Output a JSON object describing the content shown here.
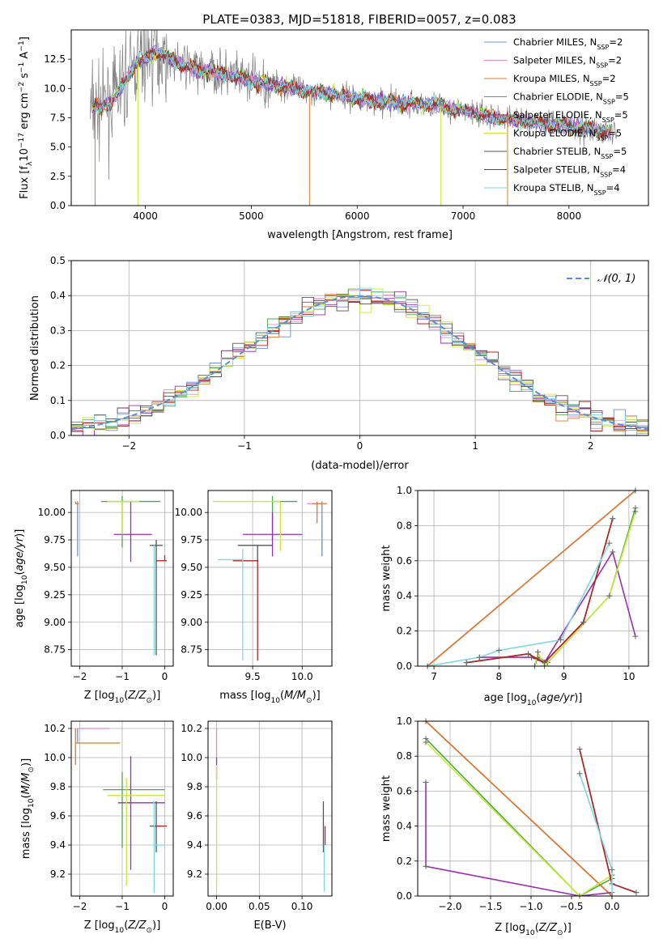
{
  "figure_title": "PLATE=0383, MJD=51818, FIBERID=0057, z=0.083",
  "series_colors": {
    "chabrier_miles": "#6a8ed6",
    "salpeter_miles": "#e08cc8",
    "kroupa_miles": "#e07a2a",
    "chabrier_elodie": "#4aaa4a",
    "salpeter_elodie": "#9b2fb0",
    "kroupa_elodie": "#c8e838",
    "chabrier_stelib": "#555555",
    "salpeter_stelib": "#b22222",
    "kroupa_stelib": "#7dd8e0"
  },
  "chart_data": [
    {
      "id": "spectrum",
      "type": "line",
      "title": "PLATE=0383, MJD=51818, FIBERID=0057, z=0.083",
      "xlabel": "wavelength [Angstrom, rest frame]",
      "ylabel": "Flux [f",
      "xlim": [
        3300,
        8750
      ],
      "ylim": [
        0,
        15
      ],
      "xticks": [
        "4000",
        "5000",
        "6000",
        "7000",
        "8000"
      ],
      "yticks": [
        "0.0",
        "2.5",
        "5.0",
        "7.5",
        "10.0",
        "12.5"
      ],
      "grid": false,
      "legend_position": "top-right",
      "legend": [
        {
          "key": "chabrier_miles",
          "label": "Chabrier MILES, N",
          "sub": "SSP",
          "suffix": "=2"
        },
        {
          "key": "salpeter_miles",
          "label": "Salpeter MILES, N",
          "sub": "SSP",
          "suffix": "=2"
        },
        {
          "key": "kroupa_miles",
          "label": "Kroupa MILES, N",
          "sub": "SSP",
          "suffix": "=2"
        },
        {
          "key": "chabrier_elodie",
          "label": "Chabrier ELODIE, N",
          "sub": "SSP",
          "suffix": "=5"
        },
        {
          "key": "salpeter_elodie",
          "label": "Salpeter ELODIE, N",
          "sub": "SSP",
          "suffix": "=5"
        },
        {
          "key": "kroupa_elodie",
          "label": "Kroupa ELODIE, N",
          "sub": "SSP",
          "suffix": "=5"
        },
        {
          "key": "chabrier_stelib",
          "label": "Chabrier STELIB, N",
          "sub": "SSP",
          "suffix": "=5"
        },
        {
          "key": "salpeter_stelib",
          "label": "Salpeter STELIB, N",
          "sub": "SSP",
          "suffix": "=4"
        },
        {
          "key": "kroupa_stelib",
          "label": "Kroupa STELIB, N",
          "sub": "SSP",
          "suffix": "=4"
        }
      ],
      "continuum": {
        "wavelength": [
          3500,
          3700,
          3900,
          4100,
          4300,
          4500,
          4700,
          4900,
          5100,
          5300,
          5500,
          5700,
          5900,
          6100,
          6300,
          6500,
          6700,
          6900,
          7100,
          7300,
          7500,
          7700,
          7900,
          8100,
          8300,
          8450
        ],
        "flux": [
          8.2,
          9.0,
          12.0,
          13.2,
          12.2,
          11.6,
          11.3,
          10.9,
          10.5,
          10.2,
          9.8,
          9.6,
          9.3,
          9.0,
          8.8,
          8.7,
          8.6,
          8.3,
          7.9,
          7.5,
          7.3,
          7.1,
          6.9,
          6.7,
          6.4,
          6.1
        ]
      }
    },
    {
      "id": "residuals",
      "type": "line",
      "xlabel": "(data-model)/error",
      "ylabel": "Normed distribution",
      "xlim": [
        -2.5,
        2.5
      ],
      "ylim": [
        0,
        0.5
      ],
      "xticks": [
        "−2",
        "−1",
        "0",
        "1",
        "2"
      ],
      "yticks": [
        "0.0",
        "0.1",
        "0.2",
        "0.3",
        "0.4",
        "0.5"
      ],
      "grid": true,
      "legend_position": "top-right",
      "legend": [
        {
          "label": "𝒩(0, 1)"
        }
      ],
      "gaussian": {
        "mean": 0,
        "sigma": 1,
        "color": "#5b8ed8"
      }
    },
    {
      "id": "age_vs_Z",
      "type": "scatter",
      "xlabel": "Z [log",
      "ylabel": "age  [log",
      "xlim": [
        -2.2,
        0.2
      ],
      "ylim": [
        8.6,
        10.2
      ],
      "xticks": [
        "−2",
        "−1",
        "0"
      ],
      "yticks": [
        "8.75",
        "9.00",
        "9.25",
        "9.50",
        "9.75",
        "10.00"
      ],
      "grid": true,
      "points": [
        {
          "key": "chabrier_miles",
          "x": -2.05,
          "y": 9.75,
          "xerr": [
            0,
            0
          ],
          "yerr": [
            0.15,
            0.35
          ]
        },
        {
          "key": "salpeter_miles",
          "x": -2.05,
          "y": 10.08,
          "xerr": [
            0,
            0
          ],
          "yerr": [
            0,
            0
          ]
        },
        {
          "key": "kroupa_miles",
          "x": -2.1,
          "y": 10.08,
          "xerr": [
            0,
            0.08
          ],
          "yerr": [
            0,
            0.02
          ]
        },
        {
          "key": "chabrier_elodie",
          "x": -1.0,
          "y": 10.1,
          "xerr": [
            0.5,
            0.9
          ],
          "yerr": [
            0.42,
            0.05
          ]
        },
        {
          "key": "salpeter_elodie",
          "x": -0.8,
          "y": 9.8,
          "xerr": [
            0.4,
            0.5
          ],
          "yerr": [
            0.25,
            0.3
          ]
        },
        {
          "key": "kroupa_elodie",
          "x": -1.0,
          "y": 10.1,
          "xerr": [
            0.35,
            0.4
          ],
          "yerr": [
            0.3,
            0.0
          ]
        },
        {
          "key": "chabrier_stelib",
          "x": -0.2,
          "y": 9.7,
          "xerr": [
            0.15,
            0.15
          ],
          "yerr": [
            1.0,
            0.05
          ]
        },
        {
          "key": "salpeter_stelib",
          "x": 0.0,
          "y": 9.56,
          "xerr": [
            0.2,
            0.05
          ],
          "yerr": [
            0,
            0.05
          ]
        },
        {
          "key": "kroupa_stelib",
          "x": -0.25,
          "y": 9.6,
          "xerr": [
            0,
            0
          ],
          "yerr": [
            0.9,
            0.1
          ]
        }
      ]
    },
    {
      "id": "age_vs_mass",
      "type": "scatter",
      "xlabel": "mass [log",
      "ylabel": "",
      "xlim": [
        9.05,
        10.3
      ],
      "ylim": [
        8.6,
        10.2
      ],
      "xticks": [
        "9.5",
        "10.0"
      ],
      "yticks": [
        "8.75",
        "9.00",
        "9.25",
        "9.50",
        "9.75",
        "10.00"
      ],
      "grid": true,
      "points": [
        {
          "key": "chabrier_miles",
          "x": 10.2,
          "y": 9.75,
          "xerr": [
            0,
            0
          ],
          "yerr": [
            0.15,
            0.35
          ]
        },
        {
          "key": "salpeter_miles",
          "x": 10.15,
          "y": 10.08,
          "xerr": [
            0.1,
            0.05
          ],
          "yerr": [
            0,
            0
          ]
        },
        {
          "key": "kroupa_miles",
          "x": 10.15,
          "y": 10.08,
          "xerr": [
            0.05,
            0.1
          ],
          "yerr": [
            0.18,
            0.02
          ]
        },
        {
          "key": "chabrier_elodie",
          "x": 9.7,
          "y": 10.1,
          "xerr": [
            0.0,
            0.25
          ],
          "yerr": [
            0.35,
            0.05
          ]
        },
        {
          "key": "salpeter_elodie",
          "x": 9.7,
          "y": 9.8,
          "xerr": [
            0.3,
            0.3
          ],
          "yerr": [
            0.2,
            0.2
          ]
        },
        {
          "key": "kroupa_elodie",
          "x": 9.78,
          "y": 10.1,
          "xerr": [
            0.68,
            0.0
          ],
          "yerr": [
            0.45,
            0.0
          ]
        },
        {
          "key": "chabrier_stelib",
          "x": 9.55,
          "y": 9.7,
          "xerr": [
            0.2,
            0.15
          ],
          "yerr": [
            0.15,
            0.0
          ]
        },
        {
          "key": "salpeter_stelib",
          "x": 9.55,
          "y": 9.56,
          "xerr": [
            0.25,
            0.0
          ],
          "yerr": [
            0.91,
            0.0
          ]
        },
        {
          "key": "kroupa_stelib",
          "x": 9.4,
          "y": 9.57,
          "xerr": [
            0.25,
            0.0
          ],
          "yerr": [
            0.92,
            0.1
          ]
        }
      ]
    },
    {
      "id": "weight_vs_age",
      "type": "line",
      "xlabel": "age  [log",
      "ylabel": "mass weight",
      "xlim": [
        6.75,
        10.3
      ],
      "ylim": [
        0,
        1
      ],
      "xticks": [
        "7",
        "8",
        "9",
        "10"
      ],
      "yticks": [
        "0.0",
        "0.2",
        "0.4",
        "0.6",
        "0.8",
        "1.0"
      ],
      "grid": true,
      "series": [
        {
          "key": "chabrier_miles",
          "x": [
            6.9,
            10.1
          ],
          "y": [
            0.0,
            1.0
          ]
        },
        {
          "key": "salpeter_miles",
          "x": [
            6.9,
            10.1
          ],
          "y": [
            0.0,
            1.0
          ]
        },
        {
          "key": "kroupa_miles",
          "x": [
            6.9,
            10.1
          ],
          "y": [
            0.0,
            1.0
          ]
        },
        {
          "key": "chabrier_elodie",
          "x": [
            8.55,
            8.6,
            8.75,
            9.7,
            10.1
          ],
          "y": [
            0.0,
            0.05,
            0.02,
            0.4,
            0.9
          ]
        },
        {
          "key": "salpeter_elodie",
          "x": [
            7.7,
            8.5,
            8.7,
            9.75,
            10.1
          ],
          "y": [
            0.05,
            0.05,
            0.02,
            0.65,
            0.17
          ]
        },
        {
          "key": "kroupa_elodie",
          "x": [
            8.55,
            8.6,
            8.7,
            9.7,
            10.1
          ],
          "y": [
            0.0,
            0.08,
            0.0,
            0.4,
            0.88
          ]
        },
        {
          "key": "chabrier_stelib",
          "x": [
            7.5,
            8.45,
            8.7,
            9.3,
            9.75
          ],
          "y": [
            0.02,
            0.07,
            0.02,
            0.25,
            0.84
          ]
        },
        {
          "key": "salpeter_stelib",
          "x": [
            7.5,
            8.45,
            8.7,
            9.3,
            9.75
          ],
          "y": [
            0.02,
            0.07,
            0.02,
            0.25,
            0.84
          ]
        },
        {
          "key": "kroupa_stelib",
          "x": [
            6.9,
            7.7,
            8.0,
            8.95,
            9.7
          ],
          "y": [
            0.0,
            0.05,
            0.09,
            0.15,
            0.7
          ]
        }
      ]
    },
    {
      "id": "mass_vs_Z",
      "type": "scatter",
      "xlabel": "Z [log",
      "ylabel": "mass [log",
      "xlim": [
        -2.2,
        0.2
      ],
      "ylim": [
        9.05,
        10.25
      ],
      "xticks": [
        "−2",
        "−1",
        "0"
      ],
      "yticks": [
        "9.2",
        "9.4",
        "9.6",
        "9.8",
        "10.0",
        "10.2"
      ],
      "grid": true,
      "points": [
        {
          "key": "chabrier_miles",
          "x": -2.05,
          "y": 10.15,
          "xerr": [
            0,
            0
          ],
          "yerr": [
            0.05,
            0.05
          ]
        },
        {
          "key": "salpeter_miles",
          "x": -2.05,
          "y": 10.2,
          "xerr": [
            0,
            0.75
          ],
          "yerr": [
            0,
            0
          ]
        },
        {
          "key": "kroupa_miles",
          "x": -2.1,
          "y": 10.1,
          "xerr": [
            0,
            1.05
          ],
          "yerr": [
            0.15,
            0.1
          ]
        },
        {
          "key": "chabrier_elodie",
          "x": -1.0,
          "y": 9.78,
          "xerr": [
            0.45,
            1.0
          ],
          "yerr": [
            0.4,
            0.12
          ]
        },
        {
          "key": "salpeter_elodie",
          "x": -0.8,
          "y": 9.69,
          "xerr": [
            0.3,
            0.8
          ],
          "yerr": [
            0.46,
            0.32
          ]
        },
        {
          "key": "kroupa_elodie",
          "x": -0.9,
          "y": 9.74,
          "xerr": [
            0.45,
            0.9
          ],
          "yerr": [
            0.62,
            0.12
          ]
        },
        {
          "key": "chabrier_stelib",
          "x": -0.2,
          "y": 9.53,
          "xerr": [
            0.15,
            0.1
          ],
          "yerr": [
            0.18,
            0.17
          ]
        },
        {
          "key": "salpeter_stelib",
          "x": 0.0,
          "y": 9.53,
          "xerr": [
            0.2,
            0.05
          ],
          "yerr": [
            0,
            0
          ]
        },
        {
          "key": "kroupa_stelib",
          "x": -0.25,
          "y": 9.4,
          "xerr": [
            0,
            0.25
          ],
          "yerr": [
            0.33,
            0.3
          ]
        }
      ]
    },
    {
      "id": "mass_vs_ebv",
      "type": "scatter",
      "xlabel": "E(B-V)",
      "ylabel": "",
      "xlim": [
        -0.01,
        0.135
      ],
      "ylim": [
        9.05,
        10.25
      ],
      "xticks": [
        "0.00",
        "0.05",
        "0.10"
      ],
      "yticks": [
        "9.2",
        "9.4",
        "9.6",
        "9.8",
        "10.0",
        "10.2"
      ],
      "grid": true,
      "points": [
        {
          "key": "salpeter_miles",
          "x": 0.0,
          "y": 10.1,
          "xerr": [
            0,
            0
          ],
          "yerr": [
            0.1,
            0.1
          ]
        },
        {
          "key": "salpeter_elodie",
          "x": 0.0,
          "y": 9.9,
          "xerr": [
            0,
            0
          ],
          "yerr": [
            0.05,
            0.1
          ]
        },
        {
          "key": "kroupa_elodie",
          "x": 0.0,
          "y": 9.5,
          "xerr": [
            0,
            0
          ],
          "yerr": [
            0.4,
            0.45
          ]
        },
        {
          "key": "chabrier_stelib",
          "x": 0.125,
          "y": 9.53,
          "xerr": [
            0,
            0
          ],
          "yerr": [
            0.18,
            0.17
          ]
        },
        {
          "key": "salpeter_stelib",
          "x": 0.127,
          "y": 9.45,
          "xerr": [
            0,
            0
          ],
          "yerr": [
            0.05,
            0.08
          ]
        },
        {
          "key": "kroupa_stelib",
          "x": 0.126,
          "y": 9.3,
          "xerr": [
            0,
            0
          ],
          "yerr": [
            0.22,
            0.1
          ]
        }
      ]
    },
    {
      "id": "weight_vs_Z",
      "type": "line",
      "xlabel": "Z [log",
      "ylabel": "mass weight",
      "xlim": [
        -2.4,
        0.45
      ],
      "ylim": [
        0,
        1
      ],
      "xticks": [
        "−2.0",
        "−1.5",
        "−1.0",
        "−0.5",
        "0.0"
      ],
      "yticks": [
        "0.0",
        "0.2",
        "0.4",
        "0.6",
        "0.8",
        "1.0"
      ],
      "grid": true,
      "series": [
        {
          "key": "chabrier_miles",
          "x": [
            -2.3,
            0.0
          ],
          "y": [
            1.0,
            0.0
          ]
        },
        {
          "key": "salpeter_miles",
          "x": [
            -2.3,
            0.0
          ],
          "y": [
            1.0,
            0.0
          ]
        },
        {
          "key": "kroupa_miles",
          "x": [
            -2.3,
            0.0
          ],
          "y": [
            1.0,
            0.0
          ]
        },
        {
          "key": "chabrier_elodie",
          "x": [
            -2.3,
            -0.4,
            0.0
          ],
          "y": [
            0.9,
            0.0,
            0.1
          ]
        },
        {
          "key": "salpeter_elodie",
          "x": [
            -2.3,
            -2.3,
            -0.4,
            0.0
          ],
          "y": [
            0.65,
            0.17,
            0.0,
            0.02
          ]
        },
        {
          "key": "kroupa_elodie",
          "x": [
            -2.3,
            -0.4,
            0.0
          ],
          "y": [
            0.88,
            0.0,
            0.12
          ]
        },
        {
          "key": "chabrier_stelib",
          "x": [
            -0.4,
            0.0,
            0.3
          ],
          "y": [
            0.84,
            0.07,
            0.02
          ]
        },
        {
          "key": "salpeter_stelib",
          "x": [
            -0.4,
            0.0,
            0.3
          ],
          "y": [
            0.84,
            0.07,
            0.02
          ]
        },
        {
          "key": "kroupa_stelib",
          "x": [
            -0.4,
            0.0,
            0.0
          ],
          "y": [
            0.7,
            0.15,
            0.0
          ]
        }
      ]
    }
  ]
}
